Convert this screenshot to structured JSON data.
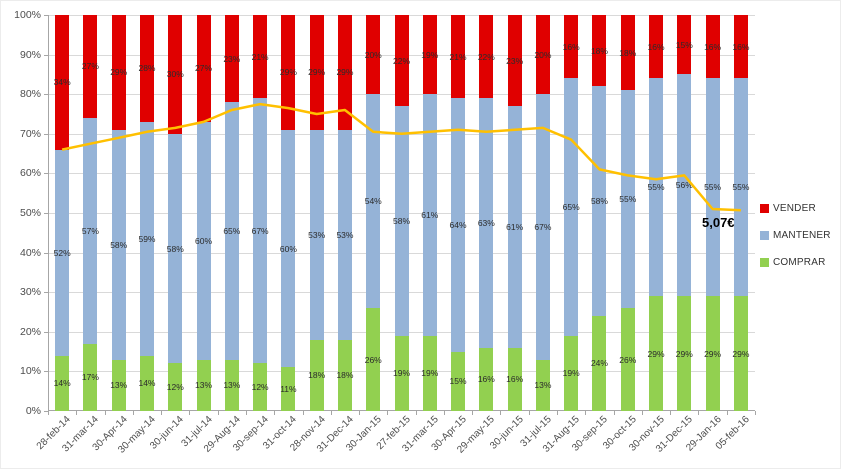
{
  "chart_data": {
    "type": "bar",
    "stacked": true,
    "stacked_mode": "percent",
    "title": "",
    "xlabel": "",
    "ylabel": "",
    "ylim": [
      0,
      100
    ],
    "grid": true,
    "legend_position": "right",
    "categories": [
      "28-feb-14",
      "31-mar-14",
      "30-Apr-14",
      "30-may-14",
      "30-jun-14",
      "31-jul-14",
      "29-Aug-14",
      "30-sep-14",
      "31-oct-14",
      "28-nov-14",
      "31-Dec-14",
      "30-Jan-15",
      "27-feb-15",
      "31-mar-15",
      "30-Apr-15",
      "29-may-15",
      "30-jun-15",
      "31-jul-15",
      "31-Aug-15",
      "30-sep-15",
      "30-oct-15",
      "30-nov-15",
      "31-Dec-15",
      "29-Jan-16",
      "05-feb-16"
    ],
    "y_ticks": [
      "0%",
      "10%",
      "20%",
      "30%",
      "40%",
      "50%",
      "60%",
      "70%",
      "80%",
      "90%",
      "100%"
    ],
    "series": [
      {
        "name": "COMPRAR",
        "color": "#92D050",
        "values": [
          14,
          17,
          13,
          14,
          12,
          13,
          13,
          12,
          11,
          18,
          18,
          26,
          19,
          19,
          15,
          16,
          16,
          13,
          19,
          24,
          26,
          29,
          29,
          29,
          29
        ]
      },
      {
        "name": "MANTENER",
        "color": "#95B3D7",
        "values": [
          52,
          57,
          58,
          59,
          58,
          60,
          65,
          67,
          60,
          53,
          53,
          54,
          58,
          61,
          64,
          63,
          61,
          67,
          65,
          58,
          55,
          55,
          56,
          55,
          55
        ]
      },
      {
        "name": "VENDER",
        "color": "#E00000",
        "values": [
          34,
          27,
          29,
          28,
          30,
          27,
          23,
          21,
          29,
          29,
          29,
          20,
          22,
          19,
          21,
          22,
          23,
          20,
          16,
          18,
          18,
          16,
          15,
          16,
          16
        ]
      }
    ],
    "price_line": {
      "color": "#FFC000",
      "values_pct": [
        66,
        67.5,
        69,
        70.5,
        71.5,
        73,
        76,
        77.5,
        76.5,
        75,
        76,
        70.5,
        70,
        70.5,
        71,
        70.5,
        71,
        71.5,
        68.5,
        61,
        59.5,
        58.5,
        59.5,
        51,
        50.7
      ],
      "end_label": "5,07€"
    },
    "legend": [
      {
        "label": "VENDER",
        "color": "#E00000"
      },
      {
        "label": "MANTENER",
        "color": "#95B3D7"
      },
      {
        "label": "COMPRAR",
        "color": "#92D050"
      }
    ]
  }
}
